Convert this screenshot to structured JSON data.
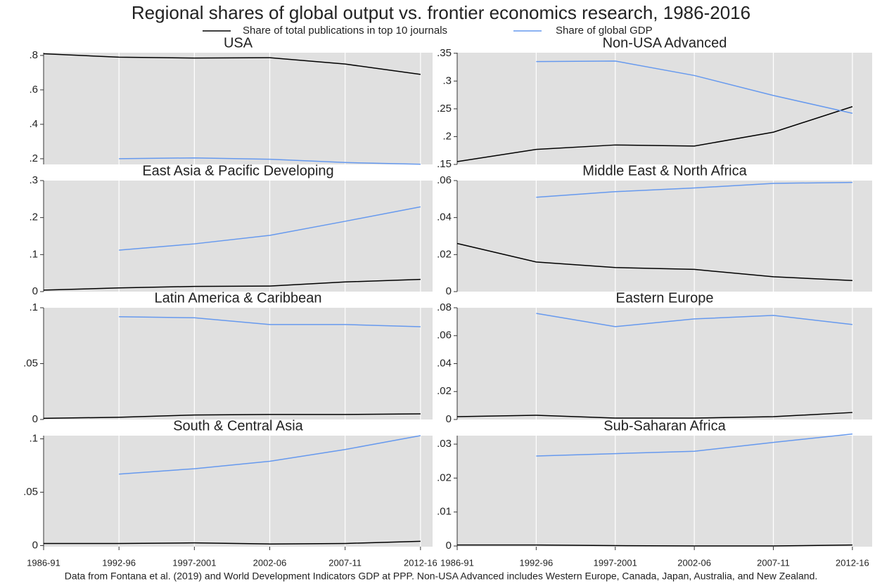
{
  "title": "Regional shares of global output vs. frontier economics research, 1986-2016",
  "note": "Data from Fontana et al. (2019) and World Development Indicators GDP at PPP. Non-USA Advanced includes Western Europe, Canada, Japan, Australia, and New Zealand.",
  "chart_data": [
    {
      "type": "line",
      "title": "USA",
      "categories": [
        "1986-91",
        "1992-96",
        "1997-2001",
        "2002-06",
        "2007-11",
        "2012-16"
      ],
      "series": [
        {
          "name": "Share of total publications in top 10 journals",
          "color": "#000000",
          "values": [
            0.81,
            0.79,
            0.785,
            0.787,
            0.75,
            0.69
          ]
        },
        {
          "name": "Share of global GDP",
          "color": "#6699ee",
          "values": [
            null,
            0.2,
            0.205,
            0.197,
            0.178,
            0.168
          ]
        }
      ],
      "ylim": [
        0.167,
        0.816
      ],
      "yticks": [
        {
          "value": 0.2,
          "label": ".2"
        },
        {
          "value": 0.4,
          "label": ".4"
        },
        {
          "value": 0.6,
          "label": ".6"
        },
        {
          "value": 0.8,
          "label": ".8"
        }
      ],
      "grid": "x"
    },
    {
      "type": "line",
      "title": "Non-USA Advanced",
      "categories": [
        "1986-91",
        "1992-96",
        "1997-2001",
        "2002-06",
        "2007-11",
        "2012-16"
      ],
      "series": [
        {
          "name": "Share of total publications in top 10 journals",
          "color": "#000000",
          "values": [
            0.155,
            0.177,
            0.185,
            0.183,
            0.208,
            0.254
          ]
        },
        {
          "name": "Share of global GDP",
          "color": "#6699ee",
          "values": [
            null,
            0.335,
            0.336,
            0.31,
            0.274,
            0.242
          ]
        }
      ],
      "ylim": [
        0.15,
        0.351
      ],
      "yticks": [
        {
          "value": 0.15,
          "label": ".15"
        },
        {
          "value": 0.2,
          "label": ".2"
        },
        {
          "value": 0.25,
          "label": ".25"
        },
        {
          "value": 0.3,
          "label": ".3"
        },
        {
          "value": 0.35,
          "label": ".35"
        }
      ],
      "grid": "x"
    },
    {
      "type": "line",
      "title": "East Asia & Pacific Developing",
      "categories": [
        "1986-91",
        "1992-96",
        "1997-2001",
        "2002-06",
        "2007-11",
        "2012-16"
      ],
      "series": [
        {
          "name": "Share of total publications in top 10 journals",
          "color": "#000000",
          "values": [
            0.004,
            0.01,
            0.014,
            0.015,
            0.026,
            0.033
          ]
        },
        {
          "name": "Share of global GDP",
          "color": "#6699ee",
          "values": [
            null,
            0.112,
            0.129,
            0.152,
            0.19,
            0.229
          ]
        }
      ],
      "ylim": [
        0,
        0.3
      ],
      "yticks": [
        0,
        {
          "value": 0.1,
          "label": ".1"
        },
        {
          "value": 0.2,
          "label": ".2"
        },
        {
          "value": 0.3,
          "label": ".3"
        }
      ],
      "grid": "x"
    },
    {
      "type": "line",
      "title": "Middle East & North Africa",
      "categories": [
        "1986-91",
        "1992-96",
        "1997-2001",
        "2002-06",
        "2007-11",
        "2012-16"
      ],
      "series": [
        {
          "name": "Share of total publications in top 10 journals",
          "color": "#000000",
          "values": [
            0.026,
            0.016,
            0.013,
            0.012,
            0.008,
            0.006
          ]
        },
        {
          "name": "Share of global GDP",
          "color": "#6699ee",
          "values": [
            null,
            0.051,
            0.054,
            0.056,
            0.0585,
            0.059
          ]
        }
      ],
      "ylim": [
        0,
        0.06
      ],
      "yticks": [
        0,
        {
          "value": 0.02,
          "label": ".02"
        },
        {
          "value": 0.04,
          "label": ".04"
        },
        {
          "value": 0.06,
          "label": ".06"
        }
      ],
      "grid": "x"
    },
    {
      "type": "line",
      "title": "Latin America & Caribbean",
      "categories": [
        "1986-91",
        "1992-96",
        "1997-2001",
        "2002-06",
        "2007-11",
        "2012-16"
      ],
      "series": [
        {
          "name": "Share of total publications in top 10 journals",
          "color": "#000000",
          "values": [
            0.001,
            0.002,
            0.004,
            0.0045,
            0.0045,
            0.005
          ]
        },
        {
          "name": "Share of global GDP",
          "color": "#6699ee",
          "values": [
            null,
            0.092,
            0.091,
            0.085,
            0.085,
            0.083
          ]
        }
      ],
      "ylim": [
        0,
        0.1
      ],
      "yticks": [
        0,
        {
          "value": 0.05,
          "label": ".05"
        },
        {
          "value": 0.1,
          "label": ".1"
        }
      ],
      "grid": "x"
    },
    {
      "type": "line",
      "title": "Eastern Europe",
      "categories": [
        "1986-91",
        "1992-96",
        "1997-2001",
        "2002-06",
        "2007-11",
        "2012-16"
      ],
      "series": [
        {
          "name": "Share of total publications in top 10 journals",
          "color": "#000000",
          "values": [
            0.002,
            0.003,
            0.001,
            0.001,
            0.002,
            0.005
          ]
        },
        {
          "name": "Share of global GDP",
          "color": "#6699ee",
          "values": [
            null,
            0.076,
            0.0665,
            0.072,
            0.0745,
            0.068
          ]
        }
      ],
      "ylim": [
        0,
        0.08
      ],
      "yticks": [
        0,
        {
          "value": 0.02,
          "label": ".02"
        },
        {
          "value": 0.04,
          "label": ".04"
        },
        {
          "value": 0.06,
          "label": ".06"
        },
        {
          "value": 0.08,
          "label": ".08"
        }
      ],
      "grid": "x"
    },
    {
      "type": "line",
      "title": "South & Central Asia",
      "categories": [
        "1986-91",
        "1992-96",
        "1997-2001",
        "2002-06",
        "2007-11",
        "2012-16"
      ],
      "series": [
        {
          "name": "Share of total publications in top 10 journals",
          "color": "#000000",
          "values": [
            0.002,
            0.002,
            0.0025,
            0.0015,
            0.002,
            0.004
          ]
        },
        {
          "name": "Share of global GDP",
          "color": "#6699ee",
          "values": [
            null,
            0.067,
            0.072,
            0.079,
            0.09,
            0.103
          ]
        }
      ],
      "ylim": [
        -0.001,
        0.103
      ],
      "yticks": [
        0,
        {
          "value": 0.05,
          "label": ".05"
        },
        {
          "value": 0.1,
          "label": ".1"
        }
      ],
      "grid": "x"
    },
    {
      "type": "line",
      "title": "Sub-Saharan Africa",
      "categories": [
        "1986-91",
        "1992-96",
        "1997-2001",
        "2002-06",
        "2007-11",
        "2012-16"
      ],
      "series": [
        {
          "name": "Share of total publications in top 10 journals",
          "color": "#000000",
          "values": [
            0.0003,
            0.0003,
            0.0001,
            0,
            0,
            0.0003
          ]
        },
        {
          "name": "Share of global GDP",
          "color": "#6699ee",
          "values": [
            null,
            0.0265,
            0.0272,
            0.0279,
            0.0305,
            0.033
          ]
        }
      ],
      "ylim": [
        -0.0002,
        0.0325
      ],
      "yticks": [
        0,
        {
          "value": 0.01,
          "label": ".01"
        },
        {
          "value": 0.02,
          "label": ".02"
        },
        {
          "value": 0.03,
          "label": ".03"
        }
      ],
      "grid": "x"
    }
  ]
}
